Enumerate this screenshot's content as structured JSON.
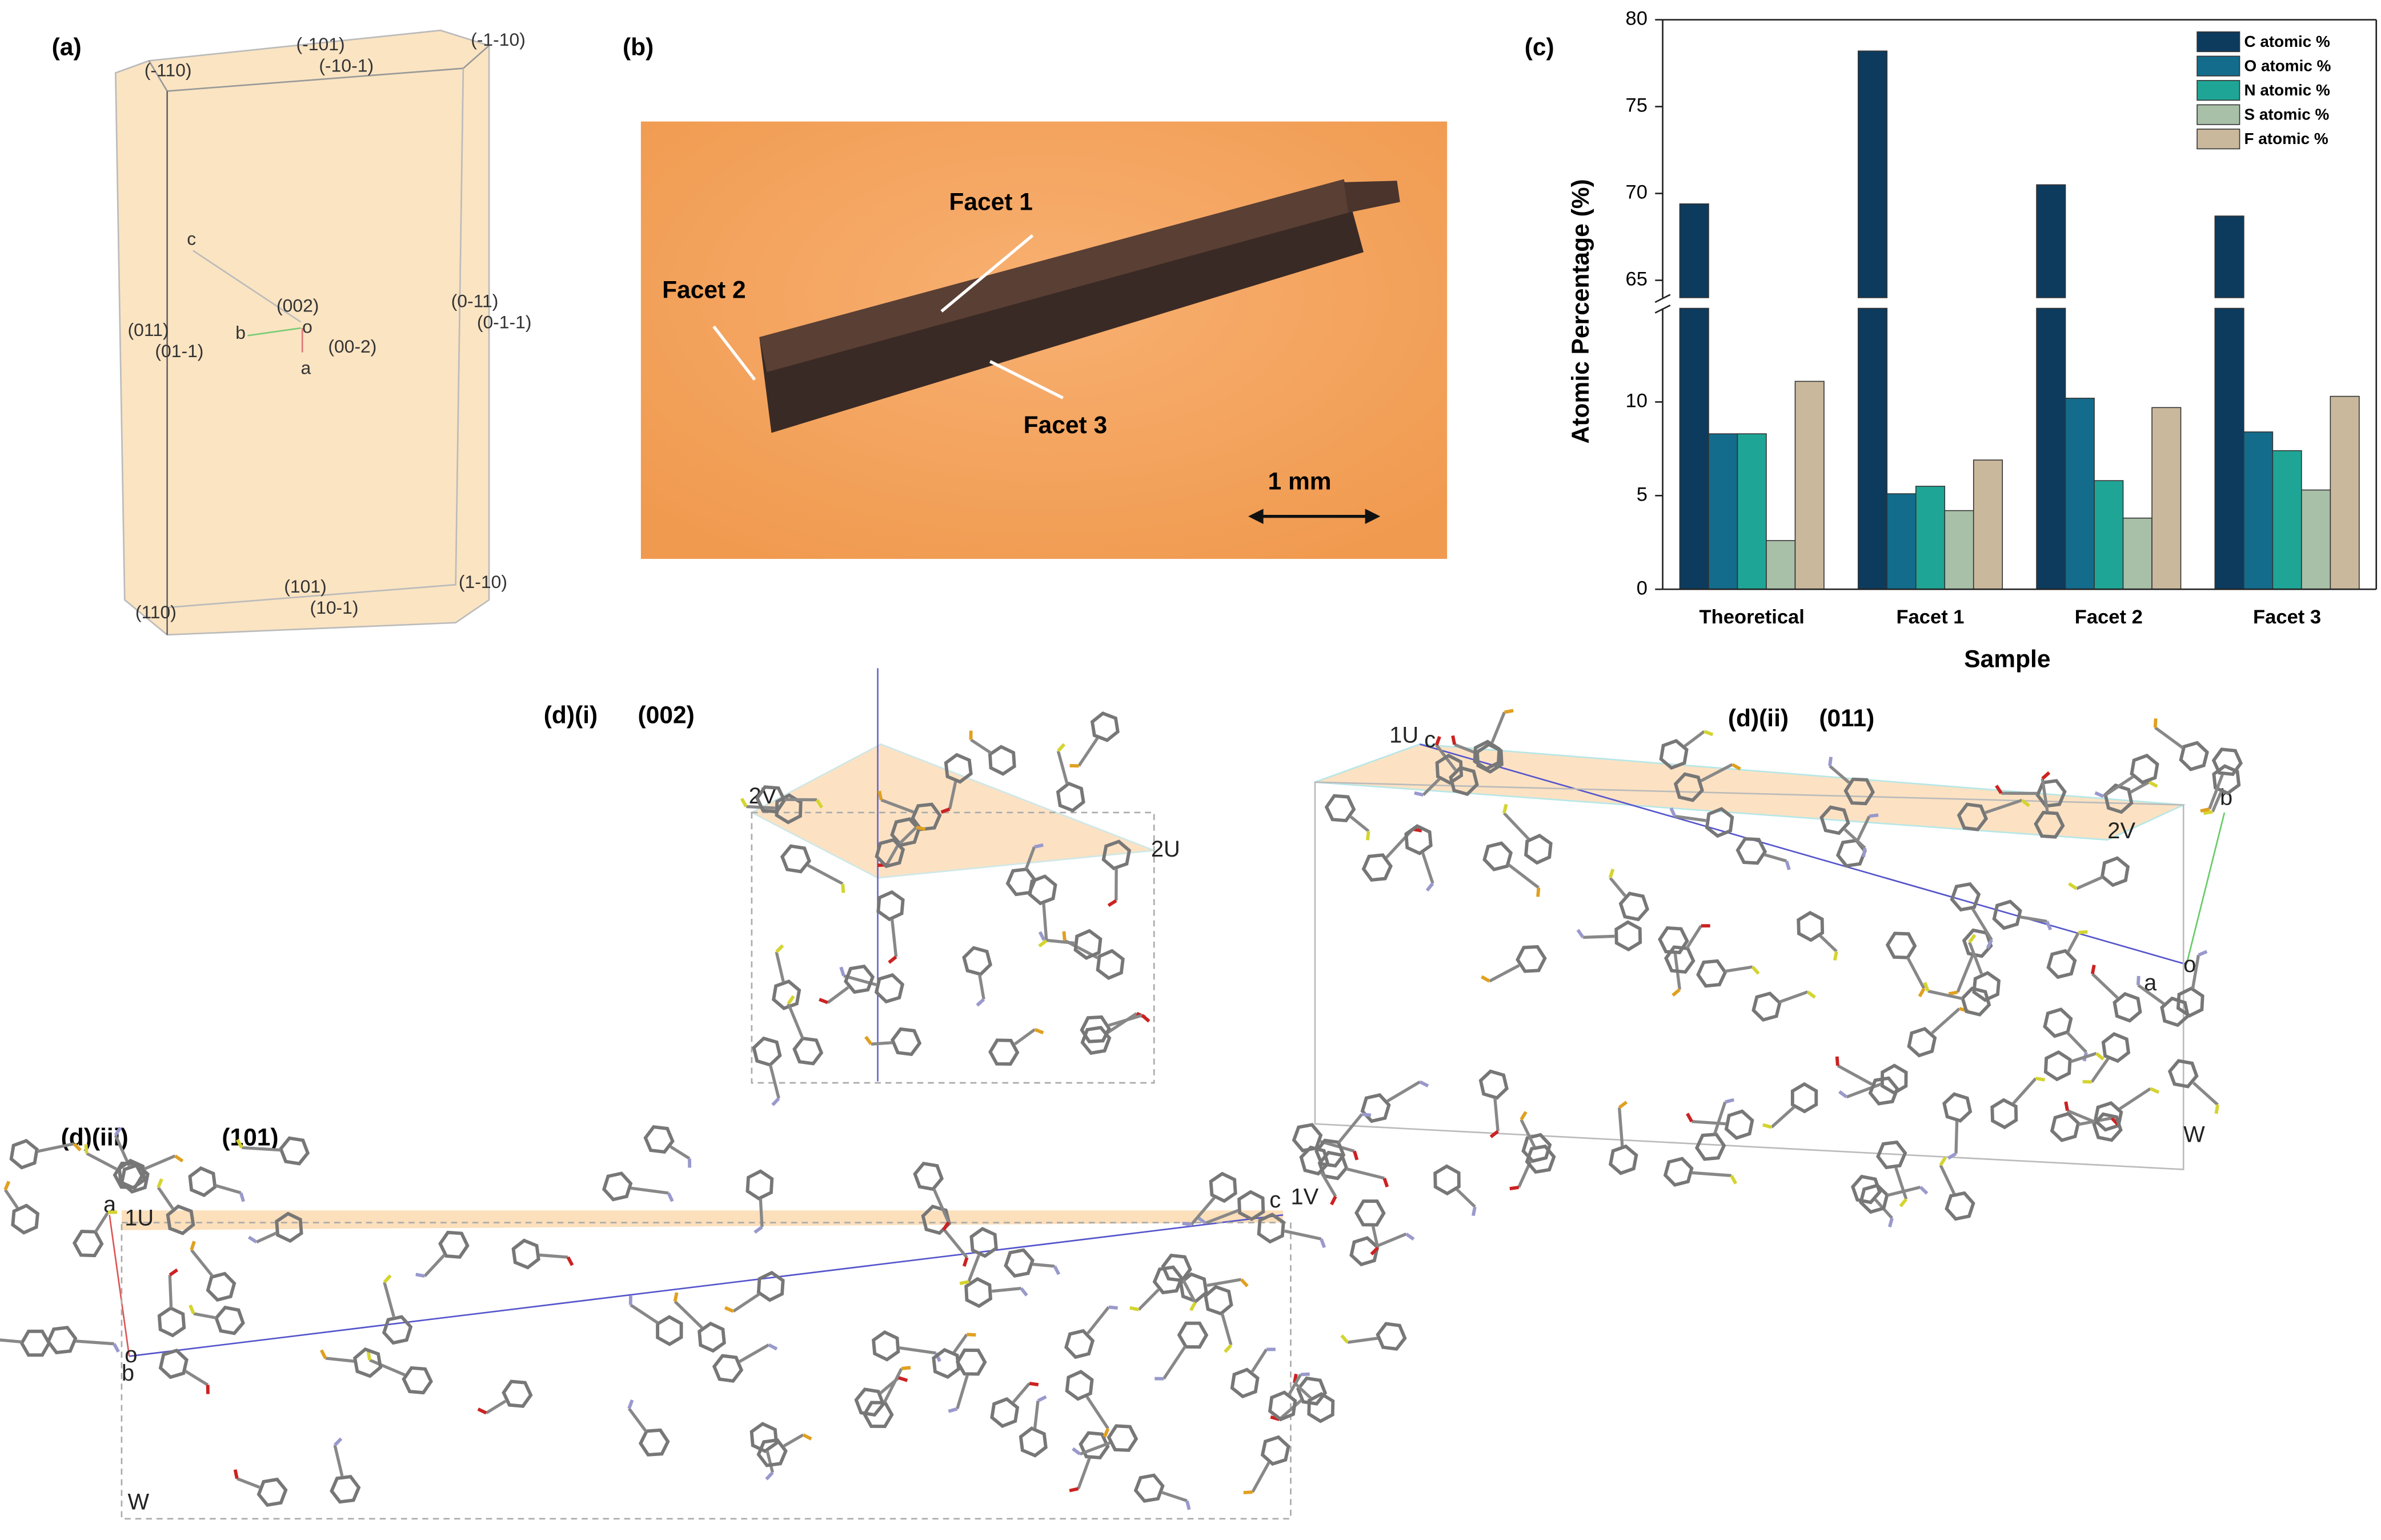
{
  "panel_a": {
    "label": "(a)",
    "facets": [
      "(-110)",
      "(-101)",
      "(-10-1)",
      "(-1-10)",
      "(002)",
      "(011)",
      "(01-1)",
      "(00-2)",
      "(0-11)",
      "(0-1-1)",
      "(101)",
      "(110)",
      "(10-1)",
      "(1-10)"
    ],
    "axes": [
      "c",
      "b",
      "o",
      "a"
    ]
  },
  "panel_b": {
    "label": "(b)",
    "facet_1": "Facet 1",
    "facet_2": "Facet 2",
    "facet_3": "Facet 3",
    "scale_bar": "1 mm"
  },
  "panel_d": [
    {
      "label": "(d)(i)",
      "plane": "(002)",
      "marks": [
        "2V",
        "2U"
      ]
    },
    {
      "label": "(d)(ii)",
      "plane": "(011)",
      "marks": [
        "1U",
        "c",
        "b",
        "2V",
        "o",
        "a",
        "W"
      ]
    },
    {
      "label": "(d)(iii)",
      "plane": "(101)",
      "marks": [
        "a",
        "1U",
        "c",
        "1V",
        "o",
        "b",
        "W"
      ]
    }
  ],
  "chart_data": {
    "type": "bar",
    "panel_label": "(c)",
    "x_label": "Sample",
    "y_label": "Atomic Percentage (%)",
    "categories": [
      "Theoretical",
      "Facet 1",
      "Facet 2",
      "Facet 3"
    ],
    "series": [
      {
        "name": "C atomic %",
        "color": "#0d3b5e",
        "values": [
          69.4,
          78.2,
          70.5,
          68.7
        ]
      },
      {
        "name": "O atomic %",
        "color": "#136c8c",
        "values": [
          8.3,
          5.1,
          10.2,
          8.4
        ]
      },
      {
        "name": "N atomic %",
        "color": "#1fa595",
        "values": [
          8.3,
          5.5,
          5.8,
          7.4
        ]
      },
      {
        "name": "S atomic %",
        "color": "#a8bfa8",
        "values": [
          2.6,
          4.2,
          3.8,
          5.3
        ]
      },
      {
        "name": "F atomic %",
        "color": "#c9b89b",
        "values": [
          11.1,
          6.9,
          9.7,
          10.3
        ]
      }
    ],
    "ylim": [
      0,
      15
    ],
    "yticks": [
      0,
      5,
      10
    ],
    "ylim_upper": [
      64,
      80
    ],
    "yticks_upper": [
      65,
      70,
      75,
      80
    ],
    "axis_break": true,
    "legend": "upper right"
  }
}
